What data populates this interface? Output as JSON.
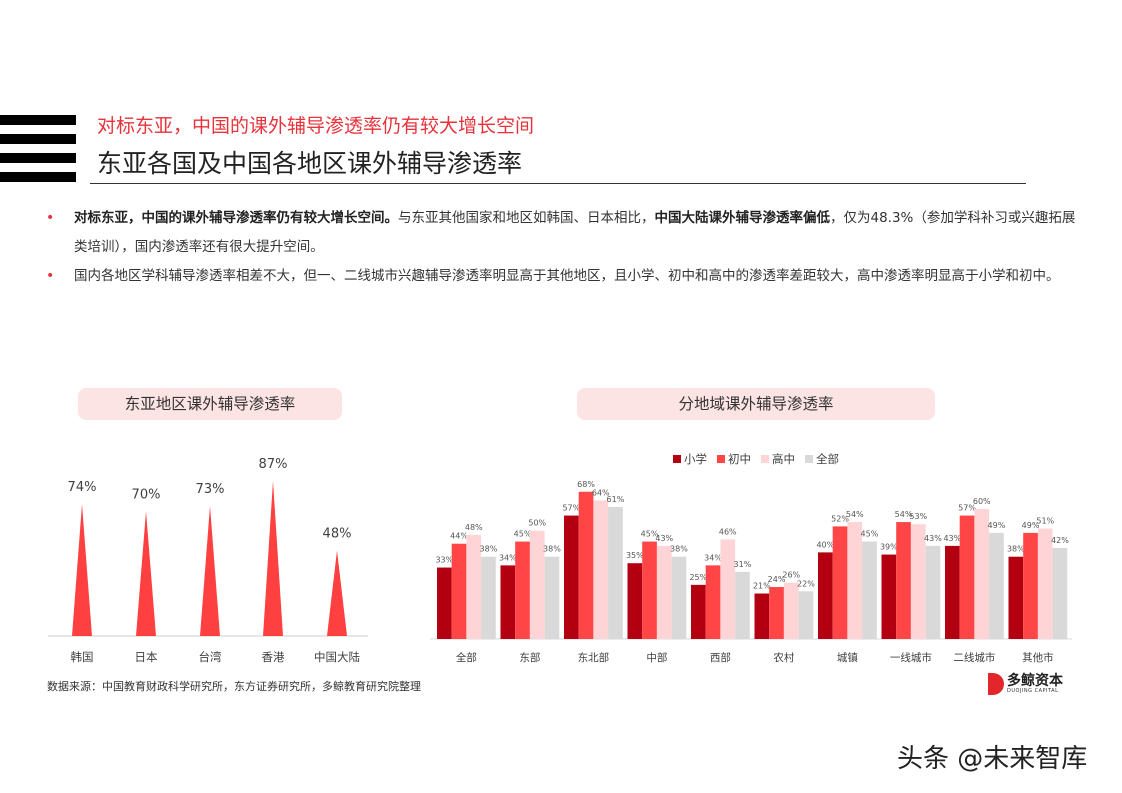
{
  "header": {
    "subtitle": "对标东亚，中国的课外辅导渗透率仍有较大增长空间",
    "title": "东亚各国及中国各地区课外辅导渗透率"
  },
  "bullets": [
    {
      "bold": "对标东亚，中国的课外辅导渗透率仍有较大增长空间。",
      "text1": "与东亚其他国家和地区如韩国、日本相比，",
      "bold2": "中国大陆课外辅导渗透率偏低",
      "text2": "，仅为48.3%（参加学科补习或兴趣拓展类培训），国内渗透率还有很大提升空间。"
    },
    {
      "text": "国内各地区学科辅导渗透率相差不大，但一、二线城市兴趣辅导渗透率明显高于其他地区，且小学、初中和高中的渗透率差距较大，高中渗透率明显高于小学和初中。"
    }
  ],
  "left_chart_title": "东亚地区课外辅导渗透率",
  "right_chart_title": "分地域课外辅导渗透率",
  "colors": {
    "primary_red": "#e8333b",
    "spike_red": "#ff4040",
    "elementary": "#b30011",
    "middle": "#ff4545",
    "high": "#ffd4d6",
    "all": "#d9d9d9",
    "pill_bg": "#fde4e4"
  },
  "chart_data": [
    {
      "type": "bar",
      "title": "东亚地区课外辅导渗透率",
      "categories": [
        "韩国",
        "日本",
        "台湾",
        "香港",
        "中国大陆"
      ],
      "values": [
        74,
        70,
        73,
        87,
        48
      ],
      "labels": [
        "74%",
        "70%",
        "73%",
        "87%",
        "48%"
      ],
      "xlabel": "",
      "ylabel": "",
      "ylim": [
        0,
        100
      ],
      "grid": false,
      "style": "triangle-spike"
    },
    {
      "type": "bar",
      "title": "分地域课外辅导渗透率",
      "categories": [
        "全部",
        "东部",
        "东北部",
        "中部",
        "西部",
        "农村",
        "城镇",
        "一线城市",
        "二线城市",
        "其他市"
      ],
      "series": [
        {
          "name": "小学",
          "values": [
            33,
            34,
            57,
            35,
            25,
            21,
            40,
            39,
            43,
            38
          ]
        },
        {
          "name": "初中",
          "values": [
            44,
            45,
            68,
            45,
            34,
            24,
            52,
            54,
            57,
            49
          ]
        },
        {
          "name": "高中",
          "values": [
            48,
            50,
            64,
            43,
            46,
            26,
            54,
            53,
            60,
            51
          ]
        },
        {
          "name": "全部",
          "values": [
            38,
            38,
            61,
            38,
            31,
            22,
            45,
            43,
            49,
            42
          ]
        }
      ],
      "legend_position": "top",
      "xlabel": "",
      "ylabel": "",
      "ylim": [
        0,
        80
      ],
      "grid": false
    }
  ],
  "footer": {
    "source": "数据来源：中国教育财政科学研究所，东方证券研究所，多鲸教育研究院整理",
    "logo_text": "多鲸资本",
    "logo_en": "DUOJING CAPITAL",
    "logo_tm": "TM",
    "watermark": "头条 @未来智库"
  }
}
